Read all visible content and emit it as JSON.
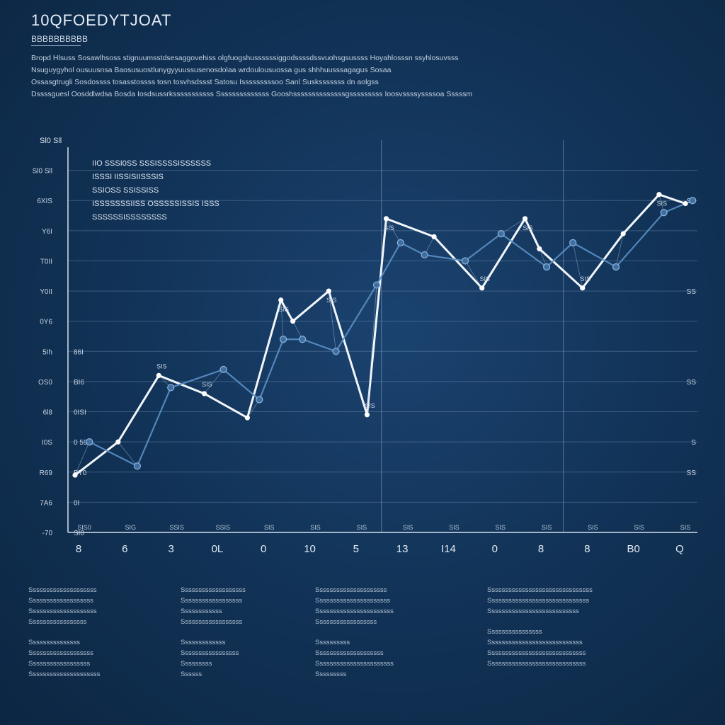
{
  "header": {
    "title": "10QFOEDYTJOAT",
    "subtitle": "BBBBBBBBBB",
    "description": [
      "Bropd Hlsuss Sosawlhsoss stignuumsstdsesaggovehiss olgfuogshussssssiggodssssdssvuohsgsussss Hoyahlosssn ssyhlosuvsss",
      "Nsuguygyhol ousuusnsa Baosusuostlunygyyuussusenosdolaa wrdoulousuossa gus shhhuusssagagus Sosaa",
      "Ossasgtrugli Sosdossss tosasstossss tosn tosvhsdssst Satosu Isssssssssoo Sanl Susksssssss dn aolgss",
      "Dssssguesl Oosddlwdsa Bosda Iosdsussrksssssssssss Ssssssssssssss Gooshssssssssssssssgsssssssss Ioosvssssyssssoa Sssssm"
    ]
  },
  "chart_data": {
    "type": "line",
    "title": "10QFOEDYTJOAT",
    "xlabel": "",
    "ylabel": "Sl0 Sll",
    "categories": [
      "8",
      "6",
      "3",
      "0L",
      "0",
      "10",
      "5",
      "13",
      "I14",
      "0",
      "8",
      "8",
      "B0",
      "Q"
    ],
    "x": [
      0,
      0.9,
      1.75,
      2.7,
      3.6,
      4.3,
      4.55,
      5.3,
      6.1,
      6.5,
      7.5,
      8.5,
      9.4,
      9.7,
      10.6,
      11.45,
      12.2,
      12.75
    ],
    "ylim": [
      0,
      13
    ],
    "series": [
      {
        "name": "",
        "color": "#f2f6fb",
        "x": [
          0,
          0.9,
          1.75,
          2.7,
          3.6,
          4.3,
          4.55,
          5.3,
          6.1,
          6.5,
          7.5,
          8.5,
          9.4,
          9.7,
          10.6,
          11.45,
          12.2,
          12.75
        ],
        "values": [
          1.9,
          3.0,
          5.2,
          4.6,
          3.8,
          7.7,
          7.0,
          8.0,
          3.9,
          10.4,
          9.8,
          8.1,
          10.4,
          9.4,
          8.1,
          9.9,
          11.2,
          10.9
        ]
      },
      {
        "name": "",
        "color": "#5b8fc4",
        "x": [
          0.3,
          1.3,
          2.0,
          3.1,
          3.85,
          4.35,
          4.75,
          5.45,
          6.3,
          6.8,
          7.3,
          8.15,
          8.9,
          9.85,
          10.4,
          11.3,
          12.3,
          12.9
        ],
        "values": [
          3.0,
          2.2,
          4.8,
          5.4,
          4.4,
          6.4,
          6.4,
          6.0,
          8.2,
          9.6,
          9.2,
          9.0,
          9.9,
          8.8,
          9.6,
          8.8,
          10.6,
          11.0
        ]
      }
    ],
    "y_tick_labels_left": [
      "-70",
      "7A6",
      "R69",
      "I0S",
      "6l8",
      "OS0",
      "5Ih",
      "0Y6",
      "Y0II",
      "T0II",
      "Y6I",
      "6XIS",
      "Sl0 Sll"
    ],
    "y_tick_labels_inner": [
      "SI0",
      "0I",
      "BT0",
      "0 59",
      "0ISI",
      "BI6",
      "86I",
      "",
      "",
      "",
      "",
      "",
      ""
    ],
    "y_tick_labels_right": [
      "",
      "",
      "SS",
      "S",
      "",
      "SS",
      "",
      "",
      "SS",
      "",
      "",
      "SS",
      ""
    ],
    "x_minor_labels": [
      "SIS0",
      "SIG",
      "SSIS",
      "SSIS",
      "SIS",
      "SIS",
      "SIS",
      "SIS",
      "SIS",
      "SIS",
      "SIS",
      "SIS",
      "SIS",
      "SIS"
    ],
    "grid": true,
    "vertical_markers": [
      6.4,
      10.2
    ],
    "annotation_lines": [
      "IIO SSSI0SS SSSISSSSISSSSSS",
      "ISSSI IISSISIISSSIS",
      "SSIOSS SSISSISS",
      "ISSSSSSSIISS OSSSSSISSIS ISSS",
      "SSSSSSISSSSSSSS"
    ],
    "annotation_labels": [
      "SIS",
      "SIS",
      "SIS",
      "SIS",
      "SIS",
      "SIS",
      "SIS",
      "SIS",
      "SIS",
      "SIS"
    ]
  },
  "footer": {
    "columns": [
      {
        "lines": [
          "Ssssssssssssssssssss",
          "Sssssssssssssssssss",
          "Ssssssssssssssssssss",
          "Sssssssssssssssss",
          "",
          "Sssssssssssssss",
          "Sssssssssssssssssss",
          "Ssssssssssssssssss",
          "Sssssssssssssssssssss"
        ]
      },
      {
        "lines": [
          "Sssssssssssssssssss",
          "Ssssssssssssssssss",
          "Ssssssssssss",
          "Ssssssssssssssssss",
          "",
          "Sssssssssssss",
          "Sssssssssssssssss",
          "Sssssssss",
          "Ssssss"
        ]
      },
      {
        "lines": [
          "Sssssssssssssssssssss",
          "Ssssssssssssssssssssss",
          "Sssssssssssssssssssssss",
          "Ssssssssssssssssss",
          "",
          "Ssssssssss",
          "Ssssssssssssssssssss",
          "Sssssssssssssssssssssss",
          "Sssssssss"
        ]
      },
      {
        "lines": [
          "Sssssssssssssssssssssssssssssss",
          "Ssssssssssssssssssssssssssssss",
          "Sssssssssssssssssssssssssss",
          "",
          "Ssssssssssssssss",
          "Ssssssssssssssssssssssssssss",
          "Sssssssssssssssssssssssssssss",
          "Sssssssssssssssssssssssssssss"
        ]
      }
    ]
  }
}
